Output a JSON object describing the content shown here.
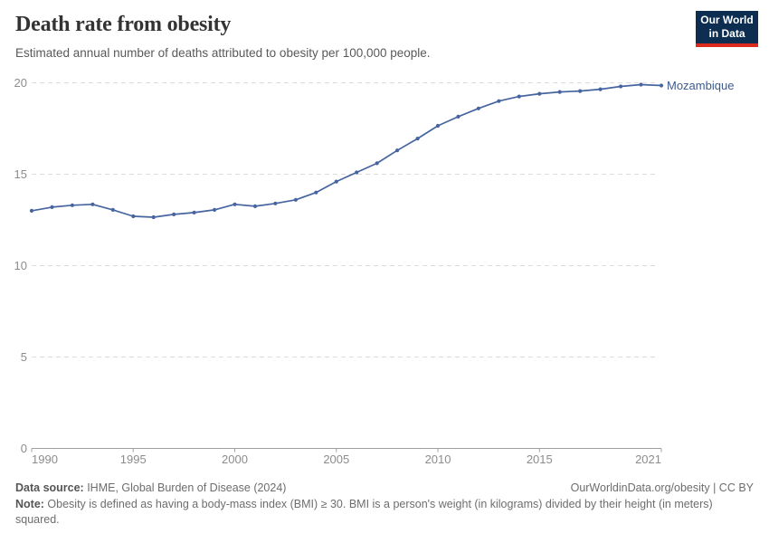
{
  "header": {
    "title": "Death rate from obesity",
    "subtitle": "Estimated annual number of deaths attributed to obesity per 100,000 people.",
    "logo": {
      "line1": "Our World",
      "line2": "in Data"
    }
  },
  "chart_data": {
    "type": "line",
    "title": "Death rate from obesity",
    "subtitle": "Estimated annual number of deaths attributed to obesity per 100,000 people.",
    "xlabel": "",
    "ylabel": "",
    "xlim": [
      1990,
      2021
    ],
    "ylim": [
      0,
      20
    ],
    "x_ticks": [
      1990,
      1995,
      2000,
      2005,
      2010,
      2015,
      2021
    ],
    "y_ticks": [
      0,
      5,
      10,
      15,
      20
    ],
    "grid": "horizontal-dashed",
    "legend_position": "end-of-line-label",
    "series": [
      {
        "name": "Mozambique",
        "color": "#4665a0",
        "x": [
          1990,
          1991,
          1992,
          1993,
          1994,
          1995,
          1996,
          1997,
          1998,
          1999,
          2000,
          2001,
          2002,
          2003,
          2004,
          2005,
          2006,
          2007,
          2008,
          2009,
          2010,
          2011,
          2012,
          2013,
          2014,
          2015,
          2016,
          2017,
          2018,
          2019,
          2020,
          2021
        ],
        "values": [
          13.0,
          13.2,
          13.3,
          13.35,
          13.05,
          12.7,
          12.65,
          12.8,
          12.9,
          13.05,
          13.35,
          13.25,
          13.4,
          13.6,
          14.0,
          14.6,
          15.1,
          15.6,
          16.3,
          16.95,
          17.65,
          18.15,
          18.6,
          19.0,
          19.25,
          19.4,
          19.5,
          19.55,
          19.65,
          19.8,
          19.9,
          19.85
        ]
      }
    ]
  },
  "footer": {
    "data_source_label": "Data source:",
    "data_source": " IHME, Global Burden of Disease (2024)",
    "link": "OurWorldinData.org/obesity | CC BY",
    "note_label": "Note:",
    "note": " Obesity is defined as having a body-mass index (BMI) ≥ 30. BMI is a person's weight (in kilograms) divided by their height (in meters) squared."
  },
  "colors": {
    "accent_line": "#4665a0",
    "entity_label": "#3d5a8f",
    "grid": "#dcdcdc",
    "axis_line": "#a0a0a0",
    "axis_text": "#8c8c8c",
    "logo_navy": "#0d2e51",
    "logo_red": "#dc2a1c"
  }
}
